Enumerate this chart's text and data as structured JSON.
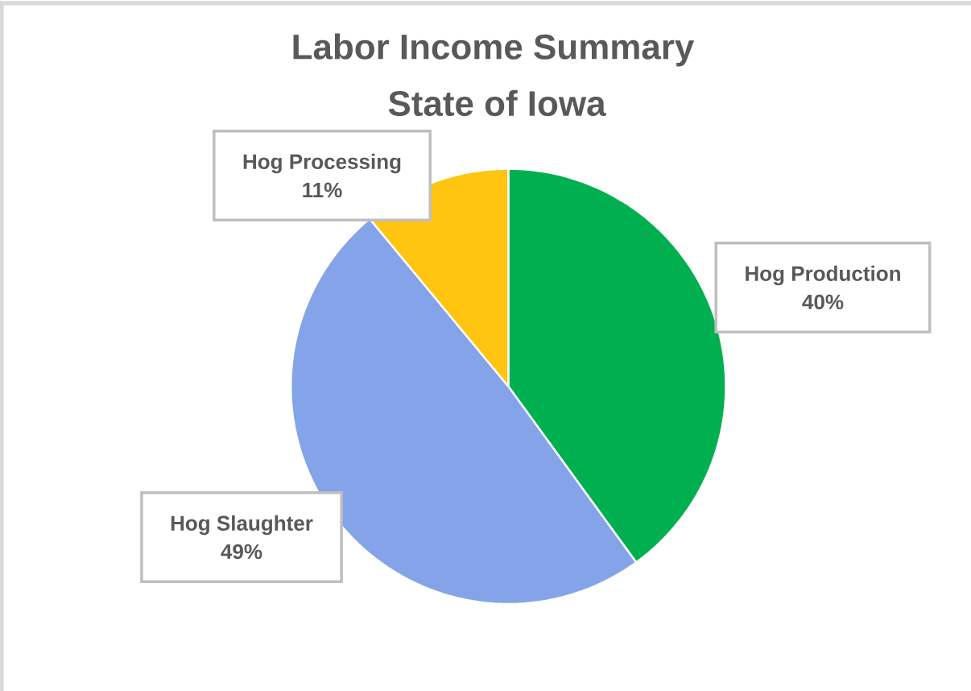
{
  "chart_data": {
    "type": "pie",
    "title": "Labor Income Summary",
    "subtitle": "State of Iowa",
    "categories": [
      "Hog Production",
      "Hog Slaughter",
      "Hog Processing"
    ],
    "values": [
      40,
      49,
      11
    ],
    "value_labels": [
      "40%",
      "49%",
      "11%"
    ],
    "colors": [
      "#00b050",
      "#84a3e8",
      "#ffc510"
    ]
  }
}
